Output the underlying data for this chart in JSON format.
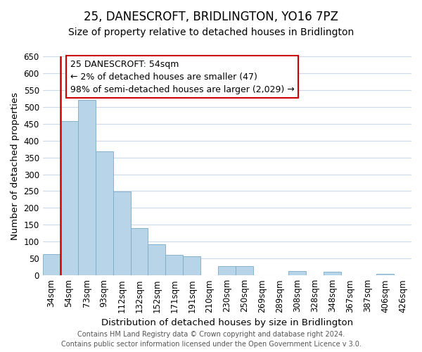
{
  "title": "25, DANESCROFT, BRIDLINGTON, YO16 7PZ",
  "subtitle": "Size of property relative to detached houses in Bridlington",
  "xlabel": "Distribution of detached houses by size in Bridlington",
  "ylabel": "Number of detached properties",
  "bin_labels": [
    "34sqm",
    "54sqm",
    "73sqm",
    "93sqm",
    "112sqm",
    "132sqm",
    "152sqm",
    "171sqm",
    "191sqm",
    "210sqm",
    "230sqm",
    "250sqm",
    "269sqm",
    "289sqm",
    "308sqm",
    "328sqm",
    "348sqm",
    "367sqm",
    "387sqm",
    "406sqm",
    "426sqm"
  ],
  "bar_heights": [
    62,
    457,
    521,
    369,
    249,
    141,
    93,
    61,
    57,
    0,
    28,
    28,
    0,
    0,
    12,
    0,
    10,
    0,
    0,
    4,
    0
  ],
  "bar_color": "#b8d4e8",
  "bar_edge_color": "#7aaac8",
  "red_line_x": 0.5,
  "red_line_color": "#cc0000",
  "ylim": [
    0,
    650
  ],
  "yticks": [
    0,
    50,
    100,
    150,
    200,
    250,
    300,
    350,
    400,
    450,
    500,
    550,
    600,
    650
  ],
  "annotation_title": "25 DANESCROFT: 54sqm",
  "annotation_line1": "← 2% of detached houses are smaller (47)",
  "annotation_line2": "98% of semi-detached houses are larger (2,029) →",
  "footer_line1": "Contains HM Land Registry data © Crown copyright and database right 2024.",
  "footer_line2": "Contains public sector information licensed under the Open Government Licence v 3.0.",
  "background_color": "#ffffff",
  "grid_color": "#ccd9e8",
  "title_fontsize": 12,
  "subtitle_fontsize": 10,
  "axis_label_fontsize": 9.5,
  "tick_fontsize": 8.5,
  "annotation_fontsize": 9,
  "footer_fontsize": 7
}
